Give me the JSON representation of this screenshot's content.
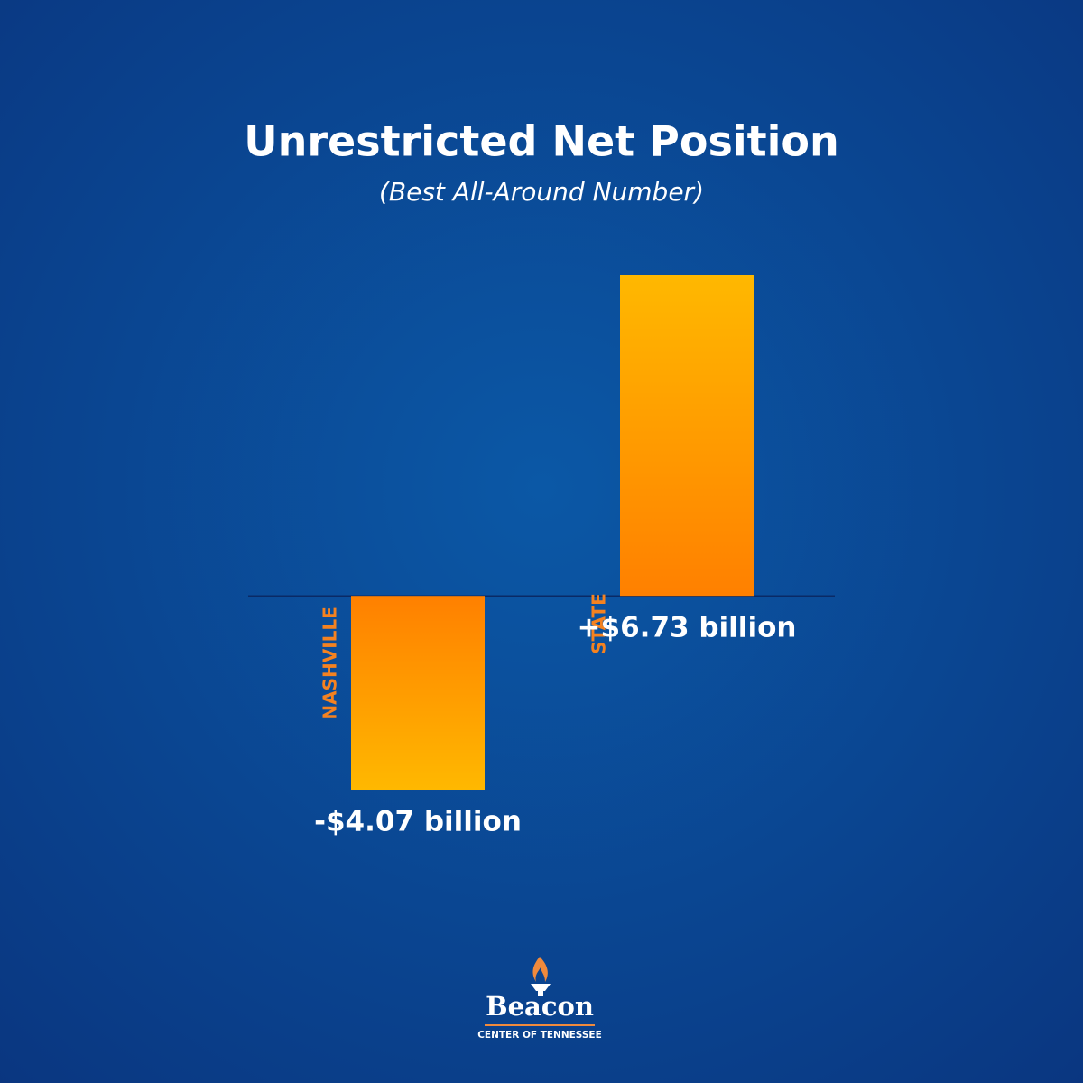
{
  "chart_data": {
    "type": "bar",
    "title": "Unrestricted Net Position",
    "subtitle": "(Best All-Around Number)",
    "categories": [
      "NASHVILLE",
      "STATE"
    ],
    "values": [
      -4.07,
      6.73
    ],
    "value_labels": [
      "-$4.07 billion",
      "+$6.73 billion"
    ],
    "gradient": [
      "#ff8000",
      "#ffb800"
    ],
    "logo_name": "Beacon",
    "logo_tagline": "CENTER OF TENNESSEE"
  }
}
